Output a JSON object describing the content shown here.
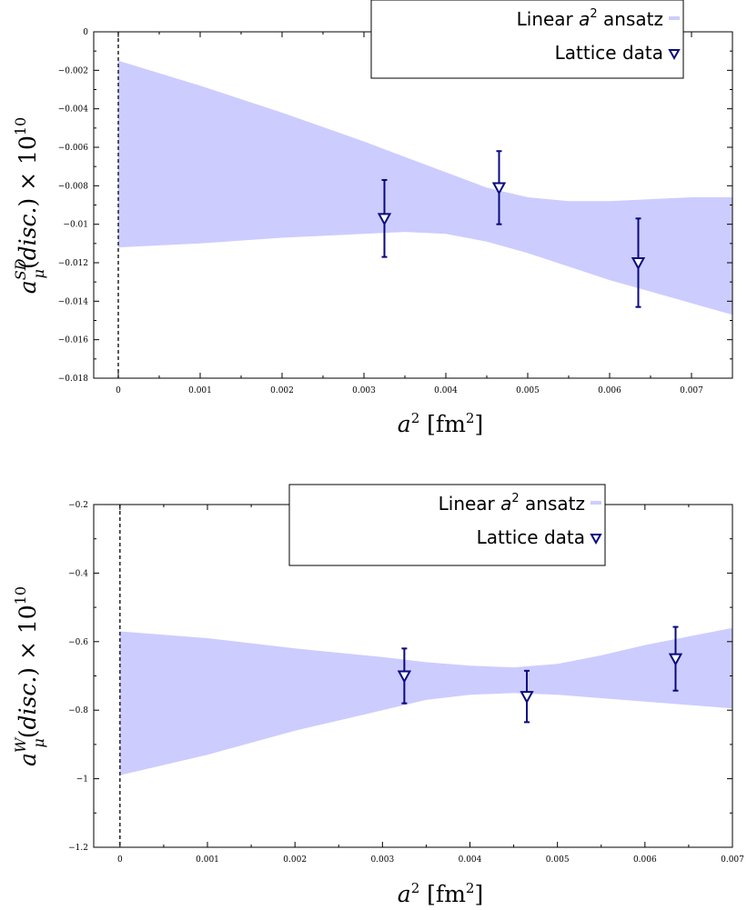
{
  "chart_data": [
    {
      "type": "scatter",
      "x_label": "a² [fm²]",
      "y_label": "a_μ^SD(disc.) × 10^10",
      "x_ticks": [
        "0",
        "0.001",
        "0.002",
        "0.003",
        "0.004",
        "0.005",
        "0.006",
        "0.007"
      ],
      "y_ticks": [
        "0",
        "−0.002",
        "−0.004",
        "−0.006",
        "−0.008",
        "−0.01",
        "−0.012",
        "−0.014",
        "−0.016",
        "−0.018"
      ],
      "xlim": [
        -0.0003,
        0.0075
      ],
      "ylim": [
        -0.018,
        0
      ],
      "legend": {
        "position": "top-right",
        "entries": [
          "Linear a² ansatz",
          "Lattice data"
        ]
      },
      "band": {
        "name": "Linear a² ansatz",
        "color": "#ccccff",
        "x": [
          0,
          0.001,
          0.002,
          0.003,
          0.0035,
          0.004,
          0.0045,
          0.005,
          0.0055,
          0.006,
          0.0065,
          0.007,
          0.0075
        ],
        "upper": [
          -0.0015,
          -0.0028,
          -0.0042,
          -0.0057,
          -0.0065,
          -0.0073,
          -0.0081,
          -0.0086,
          -0.0088,
          -0.0088,
          -0.0087,
          -0.0086,
          -0.0086
        ],
        "lower": [
          -0.0112,
          -0.011,
          -0.0107,
          -0.0105,
          -0.0104,
          -0.0105,
          -0.0109,
          -0.0115,
          -0.0122,
          -0.0129,
          -0.0135,
          -0.0141,
          -0.0147
        ]
      },
      "series": [
        {
          "name": "Lattice data",
          "color": "#0a0a7f",
          "marker": "triangle-down",
          "x": [
            0.00325,
            0.00465,
            0.00635
          ],
          "y": [
            -0.0097,
            -0.0081,
            -0.012
          ],
          "yerr": [
            0.002,
            0.0019,
            0.0023
          ]
        }
      ],
      "vline": {
        "x": 0,
        "style": "dashed"
      }
    },
    {
      "type": "scatter",
      "x_label": "a² [fm²]",
      "y_label": "a_μ^W(disc.) × 10^10",
      "x_ticks": [
        "0",
        "0.001",
        "0.002",
        "0.003",
        "0.004",
        "0.005",
        "0.006",
        "0.007"
      ],
      "y_ticks": [
        "−0.2",
        "−0.4",
        "−0.6",
        "−0.8",
        "−1",
        "−1.2"
      ],
      "xlim": [
        -0.0003,
        0.007
      ],
      "ylim": [
        -1.2,
        -0.2
      ],
      "legend": {
        "position": "top-right",
        "entries": [
          "Linear a² ansatz",
          "Lattice data"
        ]
      },
      "band": {
        "name": "Linear a² ansatz",
        "color": "#ccccff",
        "x": [
          0,
          0.001,
          0.002,
          0.003,
          0.0035,
          0.004,
          0.0045,
          0.005,
          0.0055,
          0.006,
          0.0065,
          0.007
        ],
        "upper": [
          -0.57,
          -0.59,
          -0.62,
          -0.645,
          -0.66,
          -0.67,
          -0.675,
          -0.665,
          -0.64,
          -0.61,
          -0.585,
          -0.56
        ],
        "lower": [
          -0.99,
          -0.93,
          -0.86,
          -0.8,
          -0.77,
          -0.755,
          -0.75,
          -0.755,
          -0.765,
          -0.775,
          -0.785,
          -0.795
        ]
      },
      "series": [
        {
          "name": "Lattice data",
          "color": "#0a0a7f",
          "marker": "triangle-down",
          "x": [
            0.00325,
            0.00465,
            0.00635
          ],
          "y": [
            -0.7,
            -0.76,
            -0.65
          ],
          "yerr": [
            0.08,
            0.075,
            0.093
          ]
        }
      ],
      "vline": {
        "x": 0,
        "style": "dashed"
      }
    }
  ]
}
